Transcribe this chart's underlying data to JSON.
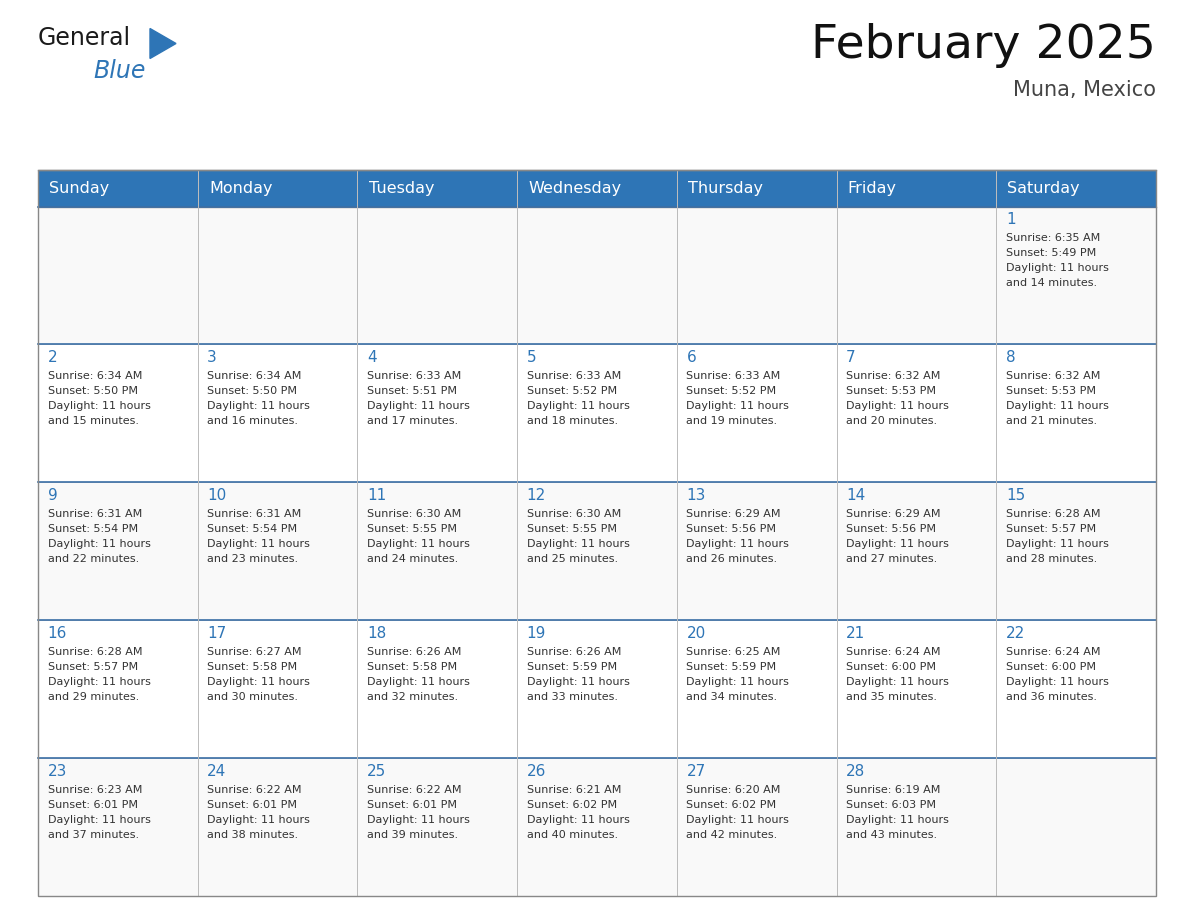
{
  "title": "February 2025",
  "subtitle": "Muna, Mexico",
  "header_color": "#2E75B6",
  "header_text_color": "#FFFFFF",
  "cell_bg_color": "#FFFFFF",
  "cell_border_color": "#AAAAAA",
  "row_sep_color": "#3A6EA5",
  "day_number_color": "#2E75B6",
  "cell_text_color": "#333333",
  "alt_row_color": "#F2F2F2",
  "days_of_week": [
    "Sunday",
    "Monday",
    "Tuesday",
    "Wednesday",
    "Thursday",
    "Friday",
    "Saturday"
  ],
  "weeks": [
    [
      {
        "day": "",
        "sunrise": "",
        "sunset": "",
        "daylight": ""
      },
      {
        "day": "",
        "sunrise": "",
        "sunset": "",
        "daylight": ""
      },
      {
        "day": "",
        "sunrise": "",
        "sunset": "",
        "daylight": ""
      },
      {
        "day": "",
        "sunrise": "",
        "sunset": "",
        "daylight": ""
      },
      {
        "day": "",
        "sunrise": "",
        "sunset": "",
        "daylight": ""
      },
      {
        "day": "",
        "sunrise": "",
        "sunset": "",
        "daylight": ""
      },
      {
        "day": "1",
        "sunrise": "6:35 AM",
        "sunset": "5:49 PM",
        "daylight": "11 hours and 14 minutes."
      }
    ],
    [
      {
        "day": "2",
        "sunrise": "6:34 AM",
        "sunset": "5:50 PM",
        "daylight": "11 hours and 15 minutes."
      },
      {
        "day": "3",
        "sunrise": "6:34 AM",
        "sunset": "5:50 PM",
        "daylight": "11 hours and 16 minutes."
      },
      {
        "day": "4",
        "sunrise": "6:33 AM",
        "sunset": "5:51 PM",
        "daylight": "11 hours and 17 minutes."
      },
      {
        "day": "5",
        "sunrise": "6:33 AM",
        "sunset": "5:52 PM",
        "daylight": "11 hours and 18 minutes."
      },
      {
        "day": "6",
        "sunrise": "6:33 AM",
        "sunset": "5:52 PM",
        "daylight": "11 hours and 19 minutes."
      },
      {
        "day": "7",
        "sunrise": "6:32 AM",
        "sunset": "5:53 PM",
        "daylight": "11 hours and 20 minutes."
      },
      {
        "day": "8",
        "sunrise": "6:32 AM",
        "sunset": "5:53 PM",
        "daylight": "11 hours and 21 minutes."
      }
    ],
    [
      {
        "day": "9",
        "sunrise": "6:31 AM",
        "sunset": "5:54 PM",
        "daylight": "11 hours and 22 minutes."
      },
      {
        "day": "10",
        "sunrise": "6:31 AM",
        "sunset": "5:54 PM",
        "daylight": "11 hours and 23 minutes."
      },
      {
        "day": "11",
        "sunrise": "6:30 AM",
        "sunset": "5:55 PM",
        "daylight": "11 hours and 24 minutes."
      },
      {
        "day": "12",
        "sunrise": "6:30 AM",
        "sunset": "5:55 PM",
        "daylight": "11 hours and 25 minutes."
      },
      {
        "day": "13",
        "sunrise": "6:29 AM",
        "sunset": "5:56 PM",
        "daylight": "11 hours and 26 minutes."
      },
      {
        "day": "14",
        "sunrise": "6:29 AM",
        "sunset": "5:56 PM",
        "daylight": "11 hours and 27 minutes."
      },
      {
        "day": "15",
        "sunrise": "6:28 AM",
        "sunset": "5:57 PM",
        "daylight": "11 hours and 28 minutes."
      }
    ],
    [
      {
        "day": "16",
        "sunrise": "6:28 AM",
        "sunset": "5:57 PM",
        "daylight": "11 hours and 29 minutes."
      },
      {
        "day": "17",
        "sunrise": "6:27 AM",
        "sunset": "5:58 PM",
        "daylight": "11 hours and 30 minutes."
      },
      {
        "day": "18",
        "sunrise": "6:26 AM",
        "sunset": "5:58 PM",
        "daylight": "11 hours and 32 minutes."
      },
      {
        "day": "19",
        "sunrise": "6:26 AM",
        "sunset": "5:59 PM",
        "daylight": "11 hours and 33 minutes."
      },
      {
        "day": "20",
        "sunrise": "6:25 AM",
        "sunset": "5:59 PM",
        "daylight": "11 hours and 34 minutes."
      },
      {
        "day": "21",
        "sunrise": "6:24 AM",
        "sunset": "6:00 PM",
        "daylight": "11 hours and 35 minutes."
      },
      {
        "day": "22",
        "sunrise": "6:24 AM",
        "sunset": "6:00 PM",
        "daylight": "11 hours and 36 minutes."
      }
    ],
    [
      {
        "day": "23",
        "sunrise": "6:23 AM",
        "sunset": "6:01 PM",
        "daylight": "11 hours and 37 minutes."
      },
      {
        "day": "24",
        "sunrise": "6:22 AM",
        "sunset": "6:01 PM",
        "daylight": "11 hours and 38 minutes."
      },
      {
        "day": "25",
        "sunrise": "6:22 AM",
        "sunset": "6:01 PM",
        "daylight": "11 hours and 39 minutes."
      },
      {
        "day": "26",
        "sunrise": "6:21 AM",
        "sunset": "6:02 PM",
        "daylight": "11 hours and 40 minutes."
      },
      {
        "day": "27",
        "sunrise": "6:20 AM",
        "sunset": "6:02 PM",
        "daylight": "11 hours and 42 minutes."
      },
      {
        "day": "28",
        "sunrise": "6:19 AM",
        "sunset": "6:03 PM",
        "daylight": "11 hours and 43 minutes."
      },
      {
        "day": "",
        "sunrise": "",
        "sunset": "",
        "daylight": ""
      }
    ]
  ],
  "logo_text_general": "General",
  "logo_text_blue": "Blue",
  "logo_color_general": "#1A1A1A",
  "logo_color_blue": "#2E75B6",
  "logo_triangle_color": "#2E75B6",
  "fig_width": 11.88,
  "fig_height": 9.18,
  "dpi": 100
}
